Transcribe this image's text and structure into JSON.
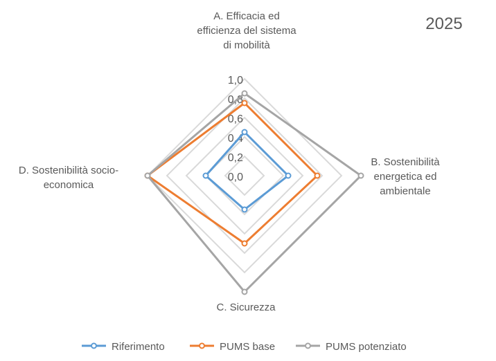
{
  "chart_data": {
    "type": "radar",
    "title": "2025",
    "axes": [
      {
        "id": "A",
        "label_lines": [
          "A. Efficacia ed",
          "efficienza del sistema",
          "di mobilità"
        ]
      },
      {
        "id": "B",
        "label_lines": [
          "B. Sostenibilità",
          "energetica ed",
          "ambientale"
        ]
      },
      {
        "id": "C",
        "label_lines": [
          "C. Sicurezza"
        ]
      },
      {
        "id": "D",
        "label_lines": [
          "D. Sostenibilità socio-",
          "economica"
        ]
      }
    ],
    "ticks": [
      "0,0",
      "0,2",
      "0,4",
      "0,6",
      "0,8",
      "1,0"
    ],
    "range": [
      0,
      1
    ],
    "series": [
      {
        "name": "Riferimento",
        "color": "#5B9BD5",
        "values": [
          0.45,
          0.45,
          0.35,
          0.4
        ]
      },
      {
        "name": "PUMS base",
        "color": "#ED7D31",
        "values": [
          0.75,
          0.75,
          0.7,
          1.0
        ]
      },
      {
        "name": "PUMS potenziato",
        "color": "#A5A5A5",
        "values": [
          0.85,
          1.2,
          1.2,
          1.0
        ]
      }
    ],
    "legend_position": "bottom"
  }
}
